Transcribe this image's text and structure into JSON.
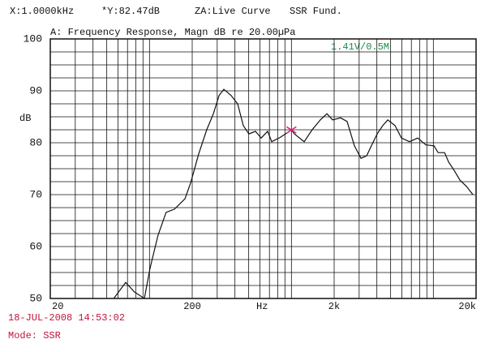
{
  "chart_data": {
    "type": "line",
    "readouts": [
      "X:1.0000kHz",
      "*Y:82.47dB",
      "ZA:Live Curve",
      "SSR Fund."
    ],
    "title": "A: Frequency Response, Magn dB re 20.00µPa",
    "annotation": "1.41V/0.5M",
    "y_label": "dB",
    "x_label": "Hz",
    "timestamp": "18-JUL-2008 14:53:02",
    "mode": "Mode: SSR",
    "log_x": true,
    "grid": true,
    "xlim": [
      20,
      20000
    ],
    "xticks": [
      20,
      200,
      {
        "value": 2000,
        "label": "2k"
      },
      {
        "value": 20000,
        "label": "20k"
      }
    ],
    "xgrid": [
      30,
      40,
      50,
      60,
      70,
      80,
      90,
      100,
      300,
      400,
      500,
      600,
      700,
      800,
      900,
      1000,
      3000,
      4000,
      5000,
      6000,
      7000,
      8000,
      9000,
      10000
    ],
    "ylim": [
      50,
      100
    ],
    "yticks": [
      50,
      60,
      70,
      80,
      90,
      100
    ],
    "ygrid": [
      52.5,
      55,
      57.5,
      62.5,
      65,
      67.5,
      72.5,
      75,
      77.5,
      82.5,
      85,
      87.5,
      92.5,
      95,
      97.5
    ],
    "marker": {
      "x": 1000,
      "y": 82.47,
      "color": "#e0207a"
    },
    "x": [
      56,
      68,
      78,
      92,
      101,
      115,
      131,
      150,
      178,
      195,
      222,
      253,
      282,
      309,
      334,
      376,
      418,
      458,
      502,
      558,
      612,
      680,
      726,
      828,
      908,
      1000,
      1050,
      1230,
      1400,
      1600,
      1780,
      1950,
      2220,
      2470,
      2780,
      3090,
      3390,
      3660,
      4020,
      4400,
      4770,
      5370,
      5960,
      6790,
      7760,
      8850,
      10100,
      10800,
      12000,
      12800,
      14000,
      15400,
      17100,
      19000
    ],
    "series": [
      {
        "name": "Live Curve",
        "color": "#111111",
        "values": [
          50,
          53.1,
          51.3,
          50,
          55.9,
          62.2,
          66.6,
          67.2,
          69.2,
          72.3,
          77.8,
          82.5,
          85.6,
          89.1,
          90.3,
          89.1,
          87.5,
          83.3,
          81.7,
          82.2,
          80.9,
          82.2,
          80.2,
          81,
          81.7,
          82.47,
          81.7,
          80.2,
          82.5,
          84.4,
          85.6,
          84.4,
          84.8,
          84.1,
          79.4,
          77.0,
          77.5,
          79.4,
          81.7,
          83.3,
          84.4,
          83.3,
          80.9,
          80.2,
          80.9,
          79.6,
          79.4,
          78.1,
          78.1,
          76.3,
          74.7,
          72.8,
          71.6,
          70.0
        ]
      }
    ]
  }
}
